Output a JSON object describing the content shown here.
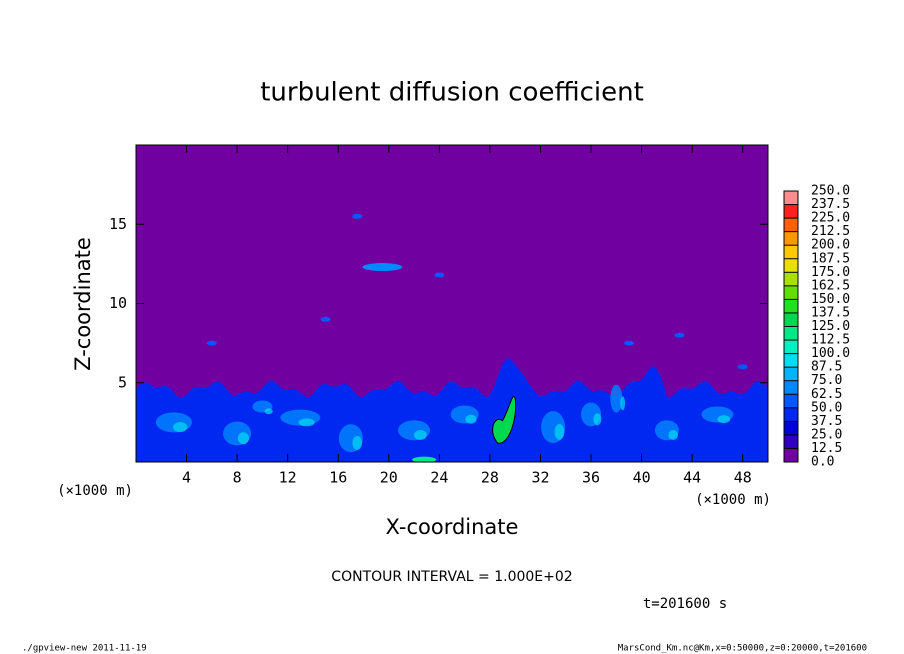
{
  "chart_data": {
    "type": "contour",
    "title": "turbulent diffusion coefficient",
    "x_label": "X-coordinate",
    "y_label": "Z-coordinate",
    "x_unit": "(×1000 m)",
    "y_unit": "(×1000 m)",
    "xlim": [
      0,
      50
    ],
    "xticks": [
      4,
      8,
      12,
      16,
      20,
      24,
      28,
      32,
      36,
      40,
      44,
      48
    ],
    "ylim": [
      0,
      20
    ],
    "yticks": [
      5,
      10,
      15
    ],
    "colorbar": {
      "lim": [
        0,
        250
      ],
      "ticks": [
        {
          "value": 0,
          "label": "0.0"
        },
        12.5,
        {
          "value": 25,
          "label": "25.0"
        },
        37.5,
        {
          "value": 50,
          "label": "50.0"
        },
        62.5,
        {
          "value": 75,
          "label": "75.0"
        },
        87.5,
        {
          "value": 100,
          "label": "100.0"
        },
        112.5,
        {
          "value": 125,
          "label": "125.0"
        },
        137.5,
        {
          "value": 150,
          "label": "150.0"
        },
        162.5,
        {
          "value": 175,
          "label": "175.0"
        },
        187.5,
        {
          "value": 200,
          "label": "200.0"
        },
        212.5,
        {
          "value": 225,
          "label": "225.0"
        },
        237.5,
        {
          "value": 250,
          "label": "250.0"
        }
      ],
      "colors": [
        "#7000a0",
        "#3000c0",
        "#0000d8",
        "#0028f0",
        "#0058ff",
        "#0088ff",
        "#00b4ff",
        "#00dcf0",
        "#00f0c0",
        "#00e888",
        "#00d850",
        "#20e020",
        "#60e000",
        "#a8e000",
        "#e8e000",
        "#ffc800",
        "#ff9800",
        "#ff6000",
        "#ff2020",
        "#ff8c8c"
      ]
    },
    "contour_interval": "CONTOUR INTERVAL = 1.000E+02",
    "time_label": "t=201600 s",
    "footer_left": "./gpview-new   2011-11-19",
    "footer_right": "MarsCond_Km.nc@Km,x=0:50000,z=0:20000,t=201600"
  }
}
